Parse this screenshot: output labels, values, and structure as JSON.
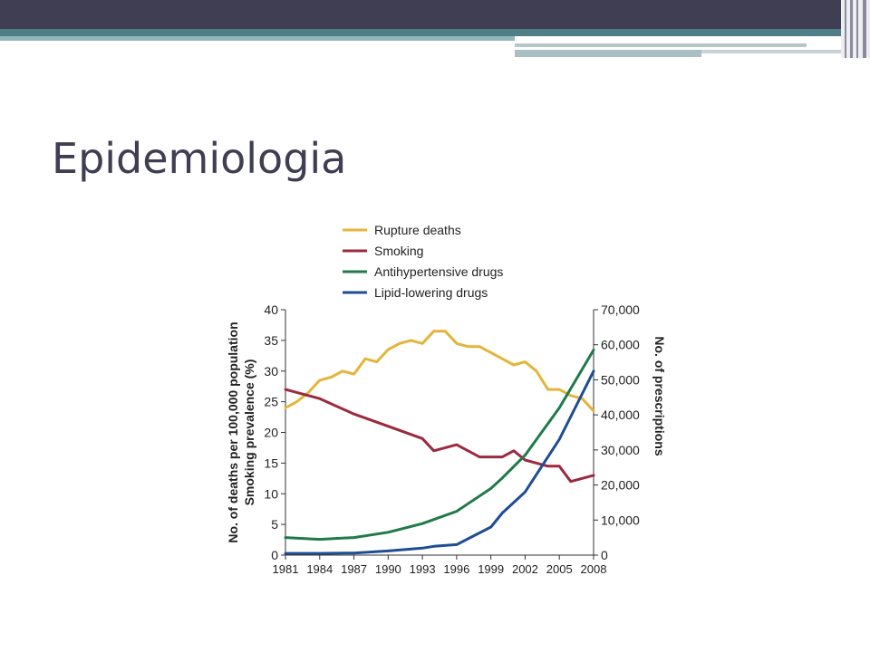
{
  "slide": {
    "title": "Epidemiologia"
  },
  "chart_data": {
    "type": "line",
    "legend_position": "top-left",
    "grid": false,
    "x": [
      1981,
      1984,
      1987,
      1990,
      1993,
      1996,
      1999,
      2002,
      2005,
      2008
    ],
    "x_tick_labels": [
      "1981",
      "1984",
      "1987",
      "1990",
      "1993",
      "1996",
      "1999",
      "2002",
      "2005",
      "2008"
    ],
    "xlim": [
      1981,
      2008
    ],
    "ylabel_left": "No. of deaths per 100,000 population Smoking prevalence (%)",
    "ylabel_left_lines": [
      "No. of deaths per 100,000 population",
      "Smoking prevalence (%)"
    ],
    "ylabel_right": "No. of prescriptions",
    "ylim_left": [
      0,
      40
    ],
    "ylim_right": [
      0,
      70000
    ],
    "left_tick_labels": [
      "0",
      "5",
      "10",
      "15",
      "20",
      "25",
      "30",
      "35",
      "40"
    ],
    "right_tick_labels": [
      "0",
      "10,000",
      "20,000",
      "30,000",
      "40,000",
      "50,000",
      "60,000",
      "70,000"
    ],
    "series": [
      {
        "name": "Rupture deaths",
        "axis": "left",
        "color": "#e5b43a",
        "points": [
          [
            1981,
            24
          ],
          [
            1982,
            25
          ],
          [
            1983,
            26.5
          ],
          [
            1984,
            28.5
          ],
          [
            1985,
            29
          ],
          [
            1986,
            30
          ],
          [
            1987,
            29.5
          ],
          [
            1988,
            32
          ],
          [
            1989,
            31.5
          ],
          [
            1990,
            33.5
          ],
          [
            1991,
            34.5
          ],
          [
            1992,
            35
          ],
          [
            1993,
            34.5
          ],
          [
            1994,
            36.5
          ],
          [
            1995,
            36.5
          ],
          [
            1996,
            34.5
          ],
          [
            1997,
            34
          ],
          [
            1998,
            34
          ],
          [
            1999,
            33
          ],
          [
            2000,
            32
          ],
          [
            2001,
            31
          ],
          [
            2002,
            31.5
          ],
          [
            2003,
            30
          ],
          [
            2004,
            27
          ],
          [
            2005,
            27
          ],
          [
            2006,
            26
          ],
          [
            2007,
            25.5
          ],
          [
            2008,
            23.5
          ]
        ]
      },
      {
        "name": "Smoking",
        "axis": "left",
        "color": "#9c2a3e",
        "points": [
          [
            1981,
            27
          ],
          [
            1984,
            25.5
          ],
          [
            1987,
            23
          ],
          [
            1990,
            21
          ],
          [
            1993,
            19
          ],
          [
            1994,
            17
          ],
          [
            1996,
            18
          ],
          [
            1998,
            16
          ],
          [
            1999,
            16
          ],
          [
            2000,
            16
          ],
          [
            2001,
            17
          ],
          [
            2002,
            15.5
          ],
          [
            2004,
            14.5
          ],
          [
            2005,
            14.5
          ],
          [
            2006,
            12
          ],
          [
            2007,
            12.5
          ],
          [
            2008,
            13
          ]
        ]
      },
      {
        "name": "Antihypertensive drugs",
        "axis": "right",
        "color": "#1f7a4a",
        "points": [
          [
            1981,
            5000
          ],
          [
            1984,
            4500
          ],
          [
            1987,
            5000
          ],
          [
            1990,
            6500
          ],
          [
            1993,
            9000
          ],
          [
            1996,
            12500
          ],
          [
            1999,
            19000
          ],
          [
            2000,
            22000
          ],
          [
            2002,
            28500
          ],
          [
            2005,
            42000
          ],
          [
            2008,
            58500
          ]
        ]
      },
      {
        "name": "Lipid-lowering drugs",
        "axis": "right",
        "color": "#1f4d94",
        "points": [
          [
            1981,
            500
          ],
          [
            1984,
            500
          ],
          [
            1987,
            600
          ],
          [
            1990,
            1200
          ],
          [
            1993,
            2000
          ],
          [
            1994,
            2500
          ],
          [
            1996,
            3000
          ],
          [
            1999,
            8000
          ],
          [
            2000,
            12000
          ],
          [
            2002,
            18000
          ],
          [
            2005,
            33000
          ],
          [
            2008,
            52500
          ]
        ]
      }
    ]
  }
}
